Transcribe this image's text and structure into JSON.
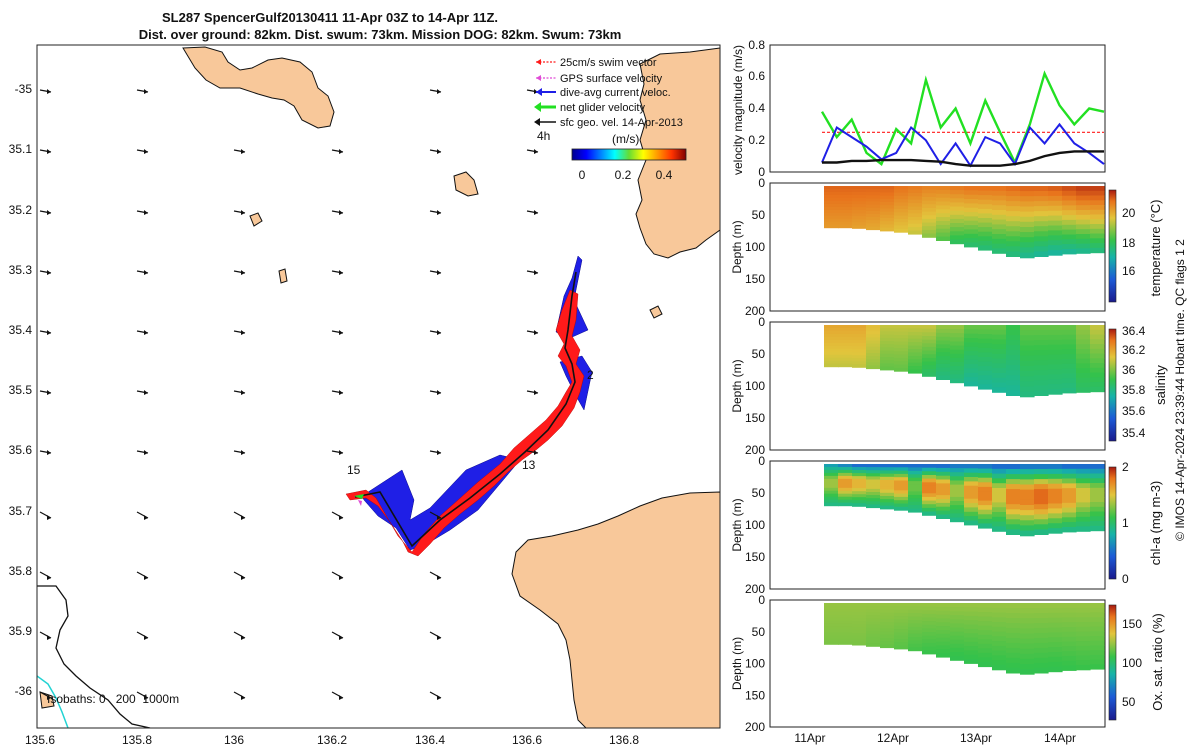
{
  "title": {
    "line1": "SL287 SpencerGulf20130411 11-Apr 03Z to 14-Apr 11Z.",
    "line2": "Dist. over ground: 82km. Dist. swum: 73km. Mission DOG: 82km. Swum: 73km"
  },
  "colors": {
    "land": "#f8c89a",
    "current": "#1f1fe6",
    "swim": "#ff1a1a",
    "gps": "#e04bd6",
    "net": "#22e022",
    "sfc": "#111111",
    "isobath200": "#22d3d3"
  },
  "map": {
    "legend": [
      "25cm/s swim vector",
      "GPS surface velocity",
      "dive-avg current veloc.",
      "net glider velocity",
      "sfc geo. vel. 14-Apr-2013"
    ],
    "time_label": "4h",
    "colorbar_label": "(m/s)",
    "colorbar_ticks": [
      "0",
      "0.2",
      "0.4"
    ],
    "x_ticks": [
      "135.6",
      "135.8",
      "136",
      "136.2",
      "136.4",
      "136.6",
      "136.8"
    ],
    "y_ticks": [
      "-35",
      "35.1",
      "35.2",
      "35.3",
      "35.4",
      "35.5",
      "35.6",
      "35.7",
      "35.8",
      "35.9",
      "-36"
    ],
    "waypoints": [
      "2",
      "13",
      "15"
    ],
    "isobaths_label": "Isobaths: 0   200  1000m"
  },
  "panels": {
    "velocity": {
      "ylabel": "velocity magnitude (m/s)",
      "y_ticks": [
        "0",
        "0.2",
        "0.4",
        "0.6",
        "0.8"
      ]
    },
    "depth_label": "Depth (m)",
    "depth_ticks": [
      "0",
      "50",
      "100",
      "150",
      "200"
    ],
    "temperature": {
      "label": "temperature (°C)",
      "ticks": [
        "16",
        "18",
        "20"
      ]
    },
    "salinity": {
      "label": "salinity",
      "ticks": [
        "35.4",
        "35.6",
        "35.8",
        "36",
        "36.2",
        "36.4"
      ]
    },
    "chla": {
      "label": "chl-a (mg m-3)",
      "ticks": [
        "0",
        "1",
        "2"
      ]
    },
    "oxygen": {
      "label": "Ox. sat. ratio (%)",
      "ticks": [
        "50",
        "100",
        "150"
      ]
    },
    "x_ticks": [
      "11Apr",
      "12Apr",
      "13Apr",
      "14Apr"
    ]
  },
  "footer": "© IMOS 14-Apr-2024 23:39:44 Hobart time. QC flags 1  2",
  "chart_data": [
    {
      "type": "line",
      "title": "velocity magnitude (m/s)",
      "ylabel": "velocity magnitude (m/s)",
      "x_ticks": [
        "11Apr",
        "12Apr",
        "13Apr",
        "14Apr"
      ],
      "ylim": [
        0,
        0.8
      ],
      "series": [
        {
          "name": "25cm/s swim vector",
          "values": [
            0.25,
            0.25,
            0.25,
            0.25,
            0.25,
            0.25,
            0.25,
            0.25,
            0.25,
            0.25,
            0.25,
            0.25,
            0.25,
            0.25,
            0.25,
            0.25,
            0.25,
            0.25,
            0.25,
            0.25
          ]
        },
        {
          "name": "net glider velocity",
          "values": [
            0.38,
            0.22,
            0.33,
            0.12,
            0.05,
            0.27,
            0.18,
            0.58,
            0.28,
            0.4,
            0.18,
            0.45,
            0.25,
            0.06,
            0.3,
            0.62,
            0.42,
            0.3,
            0.4,
            0.38
          ]
        },
        {
          "name": "dive-avg current veloc.",
          "values": [
            0.06,
            0.28,
            0.22,
            0.16,
            0.08,
            0.12,
            0.28,
            0.2,
            0.05,
            0.18,
            0.04,
            0.22,
            0.18,
            0.05,
            0.28,
            0.18,
            0.3,
            0.18,
            0.12,
            0.05
          ]
        },
        {
          "name": "sfc geo. vel. 14-Apr-2013",
          "values": [
            0.06,
            0.06,
            0.07,
            0.07,
            0.075,
            0.075,
            0.075,
            0.07,
            0.065,
            0.05,
            0.04,
            0.04,
            0.04,
            0.05,
            0.07,
            0.1,
            0.12,
            0.13,
            0.13,
            0.13
          ]
        }
      ]
    },
    {
      "type": "heatmap",
      "ylabel": "Depth (m)",
      "ylim": [
        200,
        0
      ],
      "x_ticks": [
        "11Apr",
        "12Apr",
        "13Apr",
        "14Apr"
      ],
      "colorbar_label": "temperature (°C)",
      "clim": [
        14.5,
        21.5
      ],
      "bottom_depth": [
        65,
        65,
        66,
        68,
        70,
        72,
        75,
        80,
        85,
        90,
        95,
        100,
        105,
        110,
        112,
        110,
        108,
        106,
        105,
        104
      ],
      "surface_values": [
        20.5,
        20.5,
        20.5,
        20.5,
        20.5,
        20.3,
        20.2,
        20.1,
        20.1,
        20.2,
        20.3,
        20.3,
        20.3,
        20.4,
        20.5,
        20.5,
        20.6,
        20.8,
        21,
        21
      ],
      "deep_values": [
        19.8,
        19.8,
        19.7,
        19.6,
        19.4,
        19.2,
        19,
        18.6,
        18.2,
        17.8,
        17.6,
        17.5,
        17.5,
        17.4,
        17.2,
        17.1,
        17,
        17.1,
        17.2,
        17.4
      ]
    },
    {
      "type": "heatmap",
      "ylabel": "Depth (m)",
      "ylim": [
        200,
        0
      ],
      "x_ticks": [
        "11Apr",
        "12Apr",
        "13Apr",
        "14Apr"
      ],
      "colorbar_label": "salinity",
      "clim": [
        35.3,
        36.4
      ],
      "bottom_depth": [
        65,
        65,
        66,
        68,
        70,
        72,
        75,
        80,
        85,
        90,
        95,
        100,
        105,
        110,
        112,
        110,
        108,
        106,
        105,
        104
      ],
      "surface_values": [
        36.1,
        36.1,
        36.1,
        36.05,
        36.0,
        36.0,
        36.0,
        36.0,
        35.95,
        35.95,
        35.9,
        35.9,
        35.9,
        35.85,
        35.9,
        35.9,
        35.9,
        35.9,
        35.95,
        36.0
      ],
      "deep_values": [
        36.0,
        36.0,
        36.0,
        35.95,
        35.9,
        35.9,
        35.85,
        35.8,
        35.75,
        35.75,
        35.7,
        35.7,
        35.7,
        35.7,
        35.75,
        35.75,
        35.75,
        35.75,
        35.8,
        35.8
      ]
    },
    {
      "type": "heatmap",
      "ylabel": "Depth (m)",
      "ylim": [
        200,
        0
      ],
      "x_ticks": [
        "11Apr",
        "12Apr",
        "13Apr",
        "14Apr"
      ],
      "colorbar_label": "chl-a (mg m-3)",
      "clim": [
        0,
        2
      ],
      "bottom_depth": [
        65,
        65,
        66,
        68,
        70,
        72,
        75,
        80,
        85,
        90,
        95,
        100,
        105,
        110,
        112,
        110,
        108,
        106,
        105,
        104
      ],
      "surface_values": [
        0.6,
        0.5,
        0.4,
        0.4,
        0.4,
        0.4,
        0.4,
        0.4,
        0.4,
        0.45,
        0.45,
        0.45,
        0.4,
        0.4,
        0.45,
        0.45,
        0.45,
        0.4,
        0.4,
        0.4
      ],
      "mid_values": [
        1.2,
        1.5,
        1.4,
        1.3,
        1.4,
        1.5,
        1.1,
        1.6,
        1.5,
        1.2,
        1.5,
        1.6,
        1.3,
        1.6,
        1.6,
        1.7,
        1.6,
        1.5,
        1.3,
        1.2
      ],
      "deep_values": [
        0.8,
        0.8,
        0.8,
        0.8,
        0.8,
        0.8,
        0.8,
        0.8,
        0.8,
        0.8,
        0.8,
        0.8,
        0.8,
        0.8,
        0.8,
        0.8,
        0.8,
        0.8,
        0.8,
        0.8
      ]
    },
    {
      "type": "heatmap",
      "ylabel": "Depth (m)",
      "ylim": [
        200,
        0
      ],
      "x_ticks": [
        "11Apr",
        "12Apr",
        "13Apr",
        "14Apr"
      ],
      "colorbar_label": "Ox. sat. ratio (%)",
      "clim": [
        20,
        175
      ],
      "bottom_depth": [
        65,
        65,
        66,
        68,
        70,
        72,
        75,
        80,
        85,
        90,
        95,
        100,
        105,
        110,
        112,
        110,
        108,
        106,
        105,
        104
      ],
      "surface_values": [
        112,
        112,
        112,
        112,
        112,
        112,
        112,
        112,
        112,
        112,
        112,
        112,
        112,
        112,
        112,
        112,
        112,
        112,
        112,
        112
      ],
      "deep_values": [
        108,
        108,
        108,
        106,
        105,
        103,
        100,
        98,
        97,
        96,
        96,
        96,
        96,
        96,
        96,
        96,
        96,
        97,
        98,
        98
      ]
    }
  ]
}
